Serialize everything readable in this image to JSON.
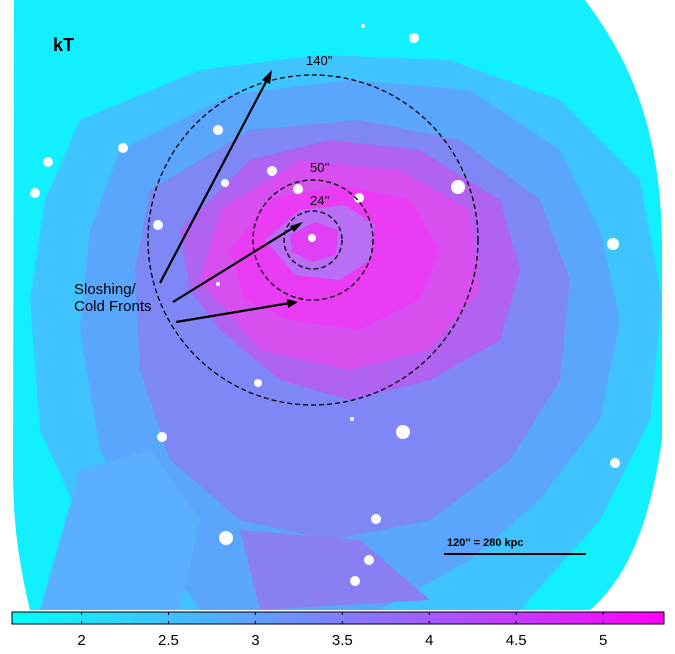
{
  "title": "kT",
  "radius_labels": [
    "140''",
    "50''",
    "24''"
  ],
  "annotation": {
    "line1": "Sloshing/",
    "line2": "Cold Fronts"
  },
  "scale_bar": {
    "label": "120'' = 280 kpc"
  },
  "colorbar": {
    "min": 1.6,
    "max": 5.35,
    "ticks": [
      {
        "value": 2,
        "label": "2"
      },
      {
        "value": 2.5,
        "label": "2.5"
      },
      {
        "value": 3,
        "label": "3"
      },
      {
        "value": 3.5,
        "label": "3.5"
      },
      {
        "value": 4,
        "label": "4"
      },
      {
        "value": 4.5,
        "label": "4.5"
      },
      {
        "value": 5,
        "label": "5"
      }
    ],
    "color_low": "#00ffff",
    "color_high": "#ff00ff"
  }
}
